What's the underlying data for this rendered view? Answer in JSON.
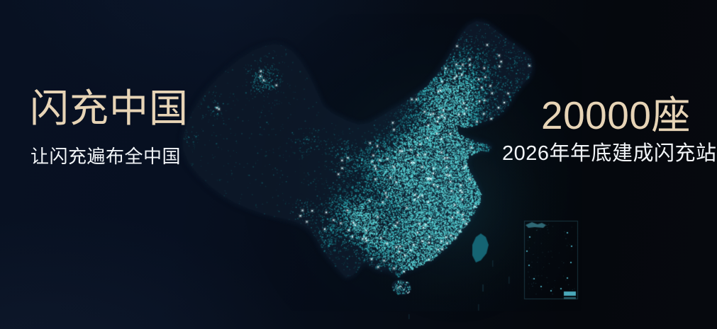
{
  "hero": {
    "left": {
      "title": "闪充中国",
      "subtitle": "让闪充遍布全中国"
    },
    "right": {
      "stat": "20000座",
      "caption": "2026年年底建成闪充站"
    }
  },
  "map": {
    "kind": "dot-density-night-map-of-china",
    "islands": [
      "taiwan",
      "hainan"
    ],
    "inset": "south-china-sea"
  },
  "colors": {
    "accent_gold": "#e7d4b6",
    "text_white": "#f2f5f8",
    "silhouette": "#0c1727",
    "dot_palette": [
      "#0d3a45",
      "#11525e",
      "#187380",
      "#22959f",
      "#36b8bf",
      "#5fd9db"
    ],
    "sparkle": "#e4fcff",
    "taiwan_fill": "#156473",
    "inset_accent": "#57c4d8",
    "glow_teal": "rgba(34,140,160,0.10)"
  }
}
